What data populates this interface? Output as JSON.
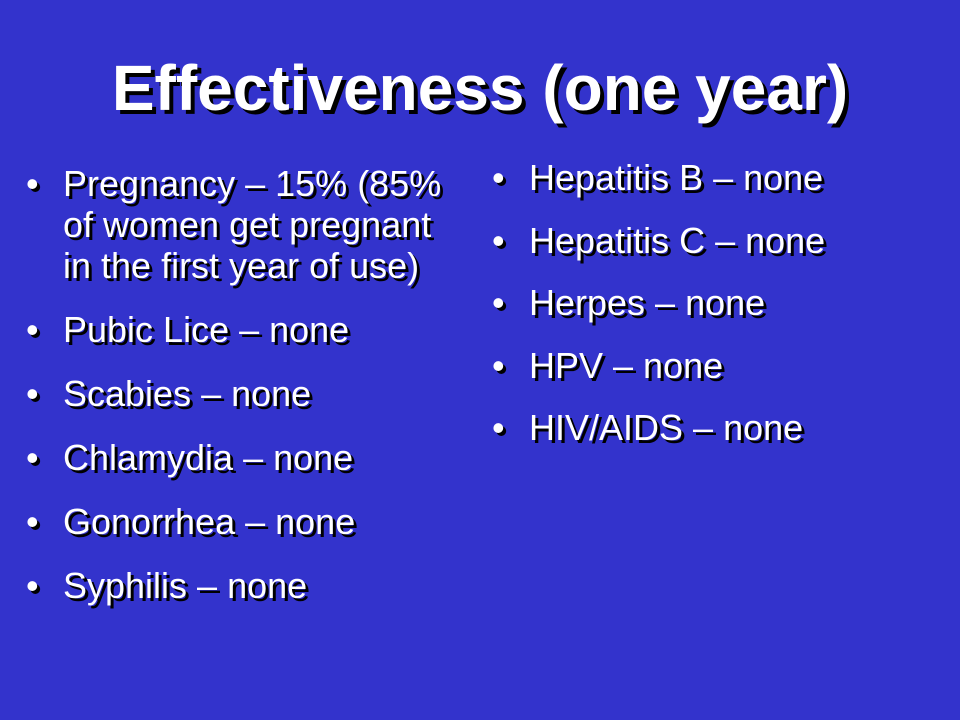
{
  "slide": {
    "title": "Effectiveness (one year)",
    "bullet_glyph": "•",
    "left_items": [
      "Pregnancy – 15% (85% of women get pregnant in the first year of use)",
      "Pubic Lice – none",
      "Scabies – none",
      "Chlamydia – none",
      "Gonorrhea – none",
      "Syphilis – none"
    ],
    "right_items": [
      "Hepatitis B – none",
      "Hepatitis C – none",
      "Herpes – none",
      "HPV – none",
      "HIV/AIDS – none"
    ]
  },
  "colors": {
    "background": "#3333cc",
    "text": "#ffffff",
    "shadow": "#000000"
  }
}
